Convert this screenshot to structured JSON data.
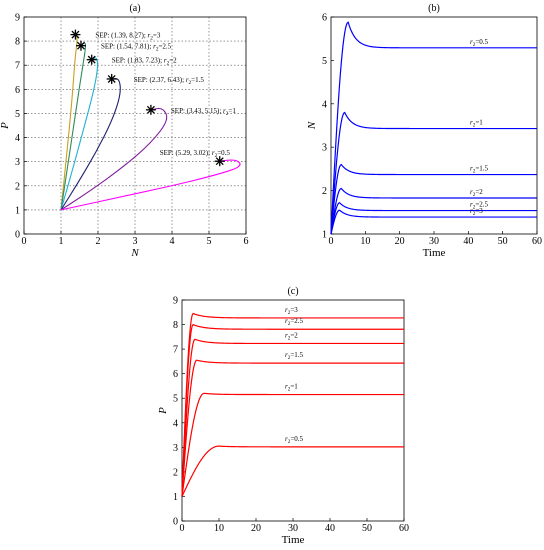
{
  "chart_data": [
    {
      "id": "a",
      "type": "line",
      "panel_title": "(a)",
      "xlabel": "N",
      "ylabel": "P",
      "xlim": [
        0,
        6
      ],
      "ylim": [
        0,
        9
      ],
      "xticks": [
        "0",
        "1",
        "2",
        "3",
        "4",
        "5",
        "6"
      ],
      "yticks": [
        "0",
        "1",
        "2",
        "3",
        "4",
        "5",
        "6",
        "7",
        "8",
        "9"
      ],
      "grid": "dotted",
      "series": [
        {
          "name": "r2=3",
          "color": "#c8a020",
          "marker": [
            1.39,
            8.27
          ],
          "label": "SEP: (1.39, 8.27); r2=3",
          "points": [
            [
              1,
              1
            ],
            [
              1.15,
              3.2
            ],
            [
              1.3,
              5.6
            ],
            [
              1.38,
              7.3
            ],
            [
              1.44,
              8.0
            ],
            [
              1.42,
              8.3
            ],
            [
              1.39,
              8.27
            ]
          ]
        },
        {
          "name": "r2=2.5",
          "color": "#2e8b57",
          "marker": [
            1.54,
            7.81
          ],
          "label": "SEP: (1.54, 7.81); r2=2.5",
          "points": [
            [
              1,
              1
            ],
            [
              1.2,
              3.0
            ],
            [
              1.42,
              5.3
            ],
            [
              1.58,
              6.9
            ],
            [
              1.68,
              7.85
            ],
            [
              1.62,
              7.95
            ],
            [
              1.54,
              7.81
            ]
          ]
        },
        {
          "name": "r2=2",
          "color": "#20b0d0",
          "marker": [
            1.83,
            7.23
          ],
          "label": "SEP: (1.83, 7.23); r2=2",
          "points": [
            [
              1,
              1
            ],
            [
              1.3,
              2.6
            ],
            [
              1.62,
              4.4
            ],
            [
              1.88,
              5.9
            ],
            [
              2.0,
              6.9
            ],
            [
              1.97,
              7.35
            ],
            [
              1.83,
              7.23
            ]
          ]
        },
        {
          "name": "r2=1.5",
          "color": "#202070",
          "marker": [
            2.37,
            6.43
          ],
          "label": "SEP: (2.37, 6.43); r2=1.5",
          "points": [
            [
              1,
              1
            ],
            [
              1.45,
              2.1
            ],
            [
              1.95,
              3.4
            ],
            [
              2.38,
              4.7
            ],
            [
              2.62,
              5.8
            ],
            [
              2.58,
              6.45
            ],
            [
              2.37,
              6.43
            ]
          ]
        },
        {
          "name": "r2=1",
          "color": "#8020a0",
          "marker": [
            3.43,
            5.15
          ],
          "label": "SEP: (3.43, 5.15); r2=1",
          "points": [
            [
              1,
              1
            ],
            [
              1.8,
              1.8
            ],
            [
              2.7,
              2.8
            ],
            [
              3.45,
              3.8
            ],
            [
              3.92,
              4.75
            ],
            [
              3.75,
              5.25
            ],
            [
              3.43,
              5.15
            ]
          ]
        },
        {
          "name": "r2=0.5",
          "color": "#ff00ff",
          "marker": [
            5.29,
            3.02
          ],
          "label": "SEP: (5.29, 3.02); r2=0.5",
          "points": [
            [
              1,
              1
            ],
            [
              2.5,
              1.5
            ],
            [
              4.0,
              2.0
            ],
            [
              5.2,
              2.45
            ],
            [
              5.9,
              2.8
            ],
            [
              5.75,
              3.1
            ],
            [
              5.29,
              3.02
            ]
          ]
        }
      ]
    },
    {
      "id": "b",
      "type": "line",
      "panel_title": "(b)",
      "xlabel": "Time",
      "ylabel": "N",
      "xlim": [
        0,
        60
      ],
      "ylim": [
        1,
        6
      ],
      "xticks": [
        "0",
        "10",
        "20",
        "30",
        "40",
        "50",
        "60"
      ],
      "yticks": [
        "1",
        "2",
        "3",
        "4",
        "5",
        "6"
      ],
      "color": "#0000ff",
      "series": [
        {
          "name": "r2=0.5",
          "peak": 5.88,
          "peak_t": 5,
          "steady": 5.29
        },
        {
          "name": "r2=1",
          "peak": 3.8,
          "peak_t": 4,
          "steady": 3.43
        },
        {
          "name": "r2=1.5",
          "peak": 2.6,
          "peak_t": 3,
          "steady": 2.37
        },
        {
          "name": "r2=2",
          "peak": 2.05,
          "peak_t": 3,
          "steady": 1.83
        },
        {
          "name": "r2=2.5",
          "peak": 1.72,
          "peak_t": 2.5,
          "steady": 1.54
        },
        {
          "name": "r2=3",
          "peak": 1.55,
          "peak_t": 2.5,
          "steady": 1.39
        }
      ]
    },
    {
      "id": "c",
      "type": "line",
      "panel_title": "(c)",
      "xlabel": "Time",
      "ylabel": "P",
      "xlim": [
        0,
        60
      ],
      "ylim": [
        0,
        9
      ],
      "xticks": [
        "0",
        "10",
        "20",
        "30",
        "40",
        "50",
        "60"
      ],
      "yticks": [
        "0",
        "1",
        "2",
        "3",
        "4",
        "5",
        "6",
        "7",
        "8",
        "9"
      ],
      "color": "#ff0000",
      "series": [
        {
          "name": "r2=3",
          "steady": 8.27,
          "peak": 8.45,
          "rise_t": 3
        },
        {
          "name": "r2=2.5",
          "steady": 7.81,
          "peak": 8.0,
          "rise_t": 3
        },
        {
          "name": "r2=2",
          "steady": 7.23,
          "peak": 7.4,
          "rise_t": 3.5
        },
        {
          "name": "r2=1.5",
          "steady": 6.43,
          "peak": 6.55,
          "rise_t": 4
        },
        {
          "name": "r2=1",
          "steady": 5.15,
          "peak": 5.2,
          "rise_t": 6
        },
        {
          "name": "r2=0.5",
          "steady": 3.02,
          "peak": 3.05,
          "rise_t": 10
        }
      ]
    }
  ]
}
